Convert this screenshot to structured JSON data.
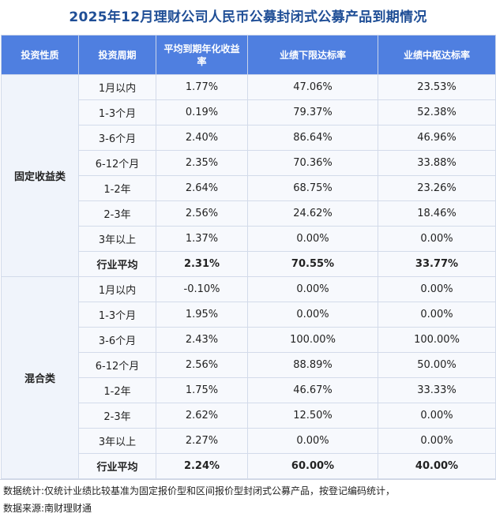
{
  "title": "2025年12月理财公司人民币公募封闭式公募产品到期情况",
  "headers": [
    "投资性质",
    "投资周期",
    "平均到期年化收益率",
    "业绩下限达标率",
    "业绩中枢达标率"
  ],
  "groups": [
    {
      "name": "固定收益类",
      "rows": [
        [
          "1月以内",
          "1.77%",
          "47.06%",
          "23.53%"
        ],
        [
          "1-3个月",
          "0.19%",
          "79.37%",
          "52.38%"
        ],
        [
          "3-6个月",
          "2.40%",
          "86.64%",
          "46.96%"
        ],
        [
          "6-12个月",
          "2.35%",
          "70.36%",
          "33.88%"
        ],
        [
          "1-2年",
          "2.64%",
          "68.75%",
          "23.26%"
        ],
        [
          "2-3年",
          "2.56%",
          "24.62%",
          "18.46%"
        ],
        [
          "3年以上",
          "1.37%",
          "0.00%",
          "0.00%"
        ],
        [
          "行业平均",
          "2.31%",
          "70.55%",
          "33.77%"
        ]
      ]
    },
    {
      "name": "混合类",
      "rows": [
        [
          "1月以内",
          "-0.10%",
          "0.00%",
          "0.00%"
        ],
        [
          "1-3个月",
          "1.95%",
          "0.00%",
          "0.00%"
        ],
        [
          "3-6个月",
          "2.43%",
          "100.00%",
          "100.00%"
        ],
        [
          "6-12个月",
          "2.56%",
          "88.89%",
          "50.00%"
        ],
        [
          "1-2年",
          "1.75%",
          "46.67%",
          "33.33%"
        ],
        [
          "2-3年",
          "2.62%",
          "12.50%",
          "0.00%"
        ],
        [
          "3年以上",
          "2.27%",
          "0.00%",
          "0.00%"
        ],
        [
          "行业平均",
          "2.24%",
          "60.00%",
          "40.00%"
        ]
      ]
    }
  ],
  "notes": {
    "line1": "数据统计:仅统计业绩比较基准为固定报价型和区间报价型封闭式公募产品，按登记编码统计，",
    "line2": "数据来源:南财理财通"
  }
}
